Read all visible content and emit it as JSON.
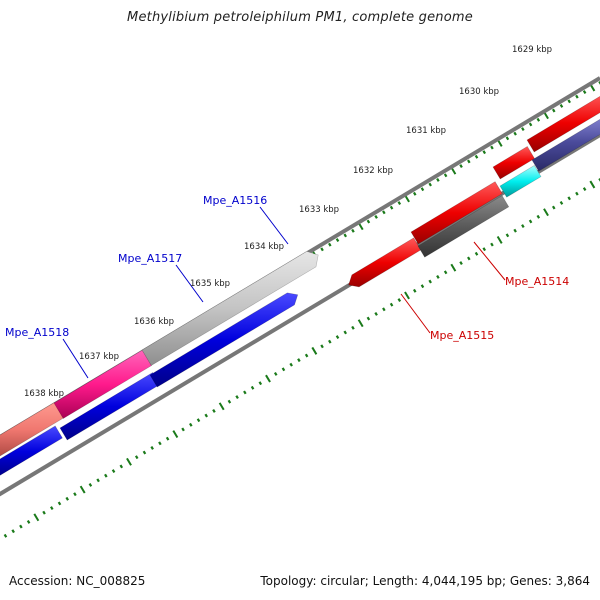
{
  "title": "Methylibium petroleiphilum PM1, complete genome",
  "footer": {
    "accession": "Accession: NC_008825",
    "stats": "Topology: circular; Length: 4,044,195 bp; Genes: 3,864"
  },
  "colors": {
    "backbone": "#7a7a7a",
    "ticks": "#1a7a1a",
    "forward_label": "#0000cc",
    "reverse_label": "#cc0000"
  },
  "scale_ticks": [
    {
      "label": "1629 kbp",
      "kbp": 1629
    },
    {
      "label": "1630 kbp",
      "kbp": 1630
    },
    {
      "label": "1631 kbp",
      "kbp": 1631
    },
    {
      "label": "1632 kbp",
      "kbp": 1632
    },
    {
      "label": "1633 kbp",
      "kbp": 1633
    },
    {
      "label": "1634 kbp",
      "kbp": 1634
    },
    {
      "label": "1635 kbp",
      "kbp": 1635
    },
    {
      "label": "1636 kbp",
      "kbp": 1636
    },
    {
      "label": "1637 kbp",
      "kbp": 1637
    },
    {
      "label": "1638 kbp",
      "kbp": 1638
    }
  ],
  "gene_labels": [
    {
      "name": "Mpe_A1516"
    },
    {
      "name": "Mpe_A1517"
    },
    {
      "name": "Mpe_A1518"
    },
    {
      "name": "Mpe_A1514"
    },
    {
      "name": "Mpe_A1515"
    }
  ]
}
